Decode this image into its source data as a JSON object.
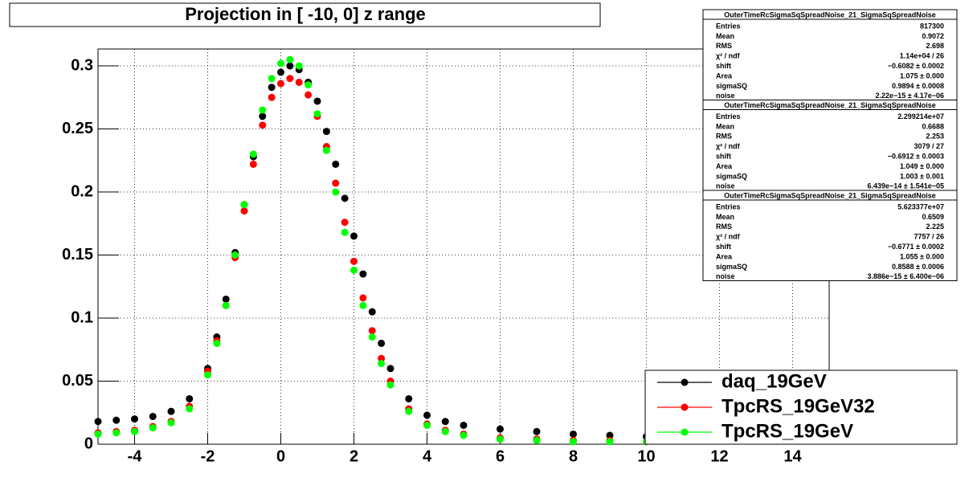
{
  "chart_data": {
    "type": "scatter",
    "title": "Projection in [ -10,   0] z range",
    "xlim": [
      -5,
      15
    ],
    "ylim": [
      0,
      0.3134
    ],
    "xticks": [
      -4,
      -2,
      0,
      2,
      4,
      6,
      8,
      10,
      12,
      14
    ],
    "yticks": [
      0,
      0.05,
      0.1,
      0.15,
      0.2,
      0.25,
      0.3
    ],
    "grid": true,
    "legend": "lower right",
    "x": [
      -5,
      -4.5,
      -4,
      -3.5,
      -3,
      -2.5,
      -2,
      -1.75,
      -1.5,
      -1.25,
      -1,
      -0.75,
      -0.5,
      -0.25,
      0,
      0.25,
      0.5,
      0.75,
      1,
      1.25,
      1.5,
      1.75,
      2,
      2.25,
      2.5,
      2.75,
      3,
      3.5,
      4,
      4.5,
      5,
      6,
      7,
      8,
      9,
      10
    ],
    "series": [
      {
        "name": "daq_19GeV",
        "color": "#000000",
        "values": [
          0.018,
          0.019,
          0.02,
          0.022,
          0.026,
          0.036,
          0.06,
          0.085,
          0.115,
          0.152,
          0.19,
          0.228,
          0.26,
          0.283,
          0.295,
          0.3,
          0.297,
          0.287,
          0.272,
          0.248,
          0.222,
          0.195,
          0.165,
          0.135,
          0.105,
          0.08,
          0.06,
          0.036,
          0.023,
          0.018,
          0.015,
          0.012,
          0.01,
          0.008,
          0.007,
          0.006
        ]
      },
      {
        "name": "TpcRS_19GeV32",
        "color": "#ff0000",
        "values": [
          0.009,
          0.01,
          0.011,
          0.014,
          0.018,
          0.03,
          0.058,
          0.082,
          0.11,
          0.148,
          0.185,
          0.222,
          0.253,
          0.275,
          0.286,
          0.29,
          0.287,
          0.277,
          0.26,
          0.236,
          0.207,
          0.176,
          0.145,
          0.116,
          0.09,
          0.068,
          0.05,
          0.028,
          0.016,
          0.011,
          0.008,
          0.005,
          0.004,
          0.003,
          0.003,
          0.002
        ]
      },
      {
        "name": "TpcRS_19GeV",
        "color": "#00ff00",
        "values": [
          0.008,
          0.009,
          0.01,
          0.013,
          0.017,
          0.028,
          0.055,
          0.08,
          0.11,
          0.15,
          0.19,
          0.23,
          0.265,
          0.29,
          0.302,
          0.305,
          0.3,
          0.285,
          0.262,
          0.233,
          0.2,
          0.168,
          0.138,
          0.11,
          0.085,
          0.064,
          0.047,
          0.026,
          0.015,
          0.01,
          0.007,
          0.004,
          0.003,
          0.002,
          0.002,
          0.002
        ]
      }
    ],
    "stats": [
      {
        "title": "OuterTimeRcSigmaSqSpreadNoise_21_SigmaSqSpreadNoise",
        "rows": [
          [
            "Entries",
            "817300"
          ],
          [
            "Mean",
            "0.9072"
          ],
          [
            "RMS",
            "2.698"
          ],
          [
            "χ² / ndf",
            "1.14e+04 / 26"
          ],
          [
            "shift",
            "−0.6082 ± 0.0002"
          ],
          [
            "Area",
            "1.075 ± 0.000"
          ],
          [
            "sigmaSQ",
            "0.9894 ± 0.0008"
          ],
          [
            "noise",
            "2.22e−15 ± 4.17e−06"
          ]
        ]
      },
      {
        "title": "OuterTimeRcSigmaSqSpreadNoise_21_SigmaSqSpreadNoise",
        "rows": [
          [
            "Entries",
            "2.299214e+07"
          ],
          [
            "Mean",
            "0.6688"
          ],
          [
            "RMS",
            "2.253"
          ],
          [
            "χ² / ndf",
            "3079 / 27"
          ],
          [
            "shift",
            "−0.6912 ± 0.0003"
          ],
          [
            "Area",
            "1.049 ± 0.000"
          ],
          [
            "sigmaSQ",
            "1.003 ± 0.001"
          ],
          [
            "noise",
            "6.439e−14 ± 1.541e−05"
          ]
        ]
      },
      {
        "title": "OuterTimeRcSigmaSqSpreadNoise_21_SigmaSqSpreadNoise",
        "rows": [
          [
            "Entries",
            "5.623377e+07"
          ],
          [
            "Mean",
            "0.6509"
          ],
          [
            "RMS",
            "2.225"
          ],
          [
            "χ² / ndf",
            "7757 / 26"
          ],
          [
            "shift",
            "−0.6771 ± 0.0002"
          ],
          [
            "Area",
            "1.055 ± 0.000"
          ],
          [
            "sigmaSQ",
            "0.8588 ± 0.0006"
          ],
          [
            "noise",
            "3.886e−15 ± 6.400e−06"
          ]
        ]
      }
    ]
  }
}
